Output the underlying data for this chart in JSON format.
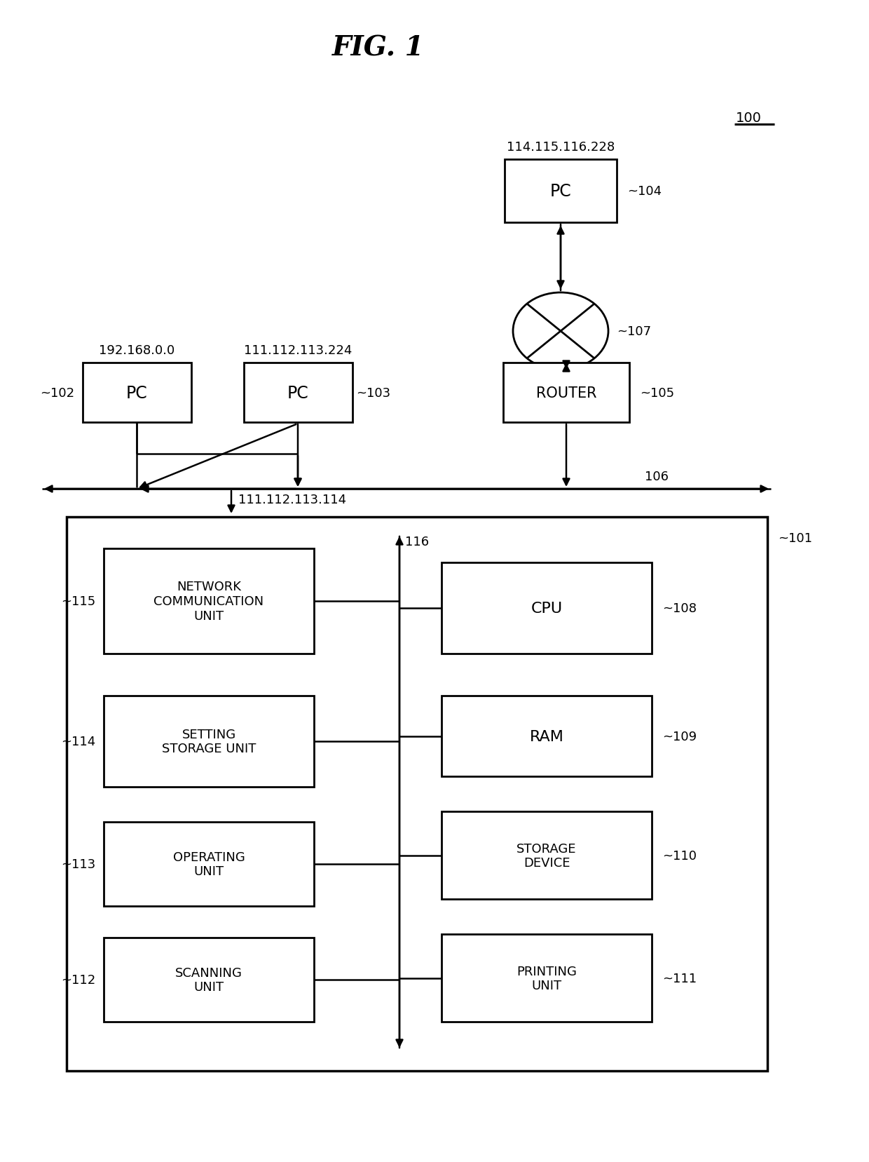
{
  "title": "FIG. 1",
  "bg_color": "#ffffff",
  "label_100": "100",
  "label_104": "104",
  "label_107": "107",
  "label_105": "105",
  "label_102": "102",
  "label_103": "103",
  "label_106": "106",
  "label_101": "101",
  "label_116": "116",
  "label_115": "115",
  "label_114": "114",
  "label_113": "113",
  "label_112": "112",
  "label_108": "108",
  "label_109": "109",
  "label_110": "110",
  "label_111": "111",
  "ip_pc104": "114.115.116.228",
  "ip_pc102": "192.168.0.0",
  "ip_pc103": "111.112.113.224",
  "ip_bus": "111.112.113.114",
  "text_pc": "PC",
  "text_router": "ROUTER",
  "text_net_comm": "NETWORK\nCOMMUNICATION\nUNIT",
  "text_setting": "SETTING\nSTORAGE UNIT",
  "text_operating": "OPERATING\nUNIT",
  "text_scanning": "SCANNING\nUNIT",
  "text_cpu": "CPU",
  "text_ram": "RAM",
  "text_storage": "STORAGE\nDEVICE",
  "text_printing": "PRINTING\nUNIT"
}
